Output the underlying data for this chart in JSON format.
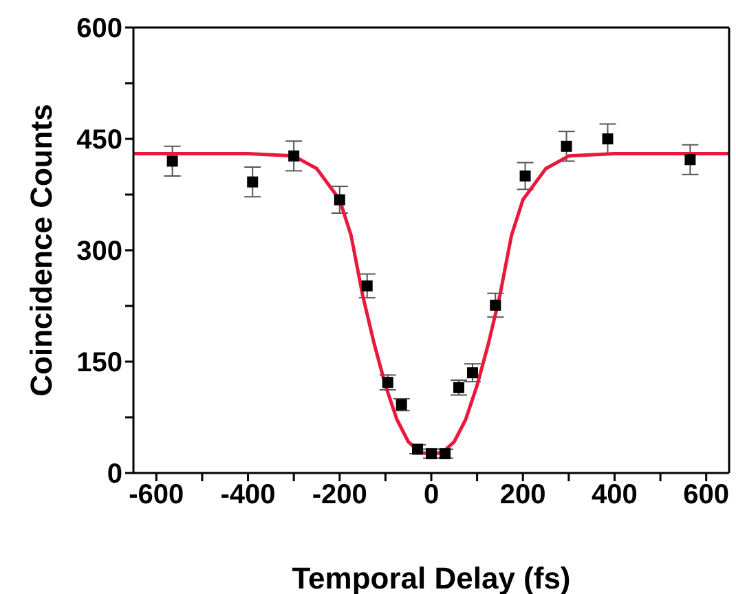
{
  "chart_data": {
    "type": "scatter",
    "xlabel": "Temporal Delay (fs)",
    "ylabel": "Coincidence Counts",
    "xlim": [
      -650,
      650
    ],
    "ylim": [
      0,
      600
    ],
    "xticks": [
      -600,
      {
        "value": -500,
        "label": null
      },
      -400,
      {
        "value": -300,
        "label": null
      },
      -200,
      {
        "value": -100,
        "label": null
      },
      0,
      {
        "value": 100,
        "label": null
      },
      200,
      {
        "value": 300,
        "label": null
      },
      400,
      {
        "value": 500,
        "label": null
      },
      600
    ],
    "yticks": [
      0,
      {
        "value": 75,
        "label": null
      },
      150,
      {
        "value": 225,
        "label": null
      },
      300,
      {
        "value": 375,
        "label": null
      },
      450,
      {
        "value": 525,
        "label": null
      },
      600
    ],
    "series": [
      {
        "color": "#000000",
        "marker": "square",
        "x": [
          -565,
          -390,
          -300,
          -200,
          -140,
          -95,
          -65,
          -30,
          0,
          30,
          60,
          90,
          140,
          205,
          295,
          385,
          565
        ],
        "values": [
          420,
          392,
          427,
          368,
          252,
          122,
          92,
          32,
          26,
          26,
          115,
          135,
          226,
          400,
          440,
          450,
          422
        ],
        "errors": [
          20,
          20,
          20,
          18,
          16,
          10,
          8,
          6,
          6,
          6,
          10,
          12,
          16,
          18,
          20,
          20,
          20
        ]
      },
      {
        "type": "line",
        "color": "#e8193c",
        "marker": "none",
        "line_style": "solid",
        "x": [
          -650,
          -400,
          -300,
          -250,
          -200,
          -175,
          -150,
          -125,
          -100,
          -75,
          -50,
          -25,
          0,
          25,
          50,
          75,
          100,
          125,
          150,
          175,
          200,
          250,
          300,
          400,
          650
        ],
        "values": [
          430,
          430,
          427,
          410,
          368,
          320,
          240,
          175,
          118,
          72,
          42,
          28,
          25,
          28,
          42,
          72,
          118,
          175,
          240,
          320,
          368,
          410,
          427,
          430,
          430
        ]
      }
    ]
  }
}
